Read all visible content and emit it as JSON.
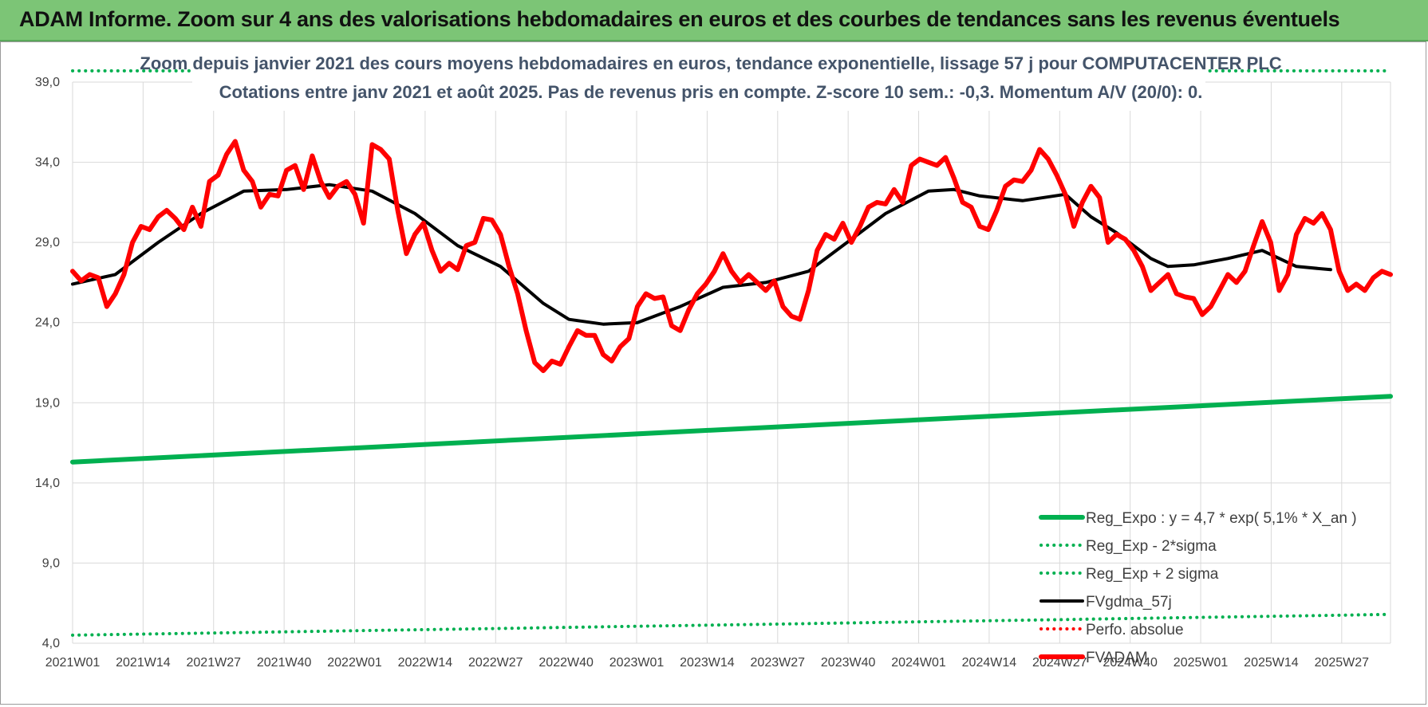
{
  "banner": {
    "title": "ADAM Informe. Zoom sur 4 ans des valorisations hebdomadaires en euros et des courbes de tendances sans les revenus éventuels"
  },
  "colors": {
    "banner_bg": "#7cc576",
    "subtitle": "#44546a",
    "reg_expo": "#00b050",
    "fvgdma": "#000000",
    "fvadam": "#ff0000",
    "perfo": "#ff0000"
  },
  "chart_data": {
    "type": "line",
    "title_line1": "Zoom depuis janvier 2021 des cours moyens hebdomadaires en euros, tendance exponentielle, lissage 57 j pour COMPUTACENTER PLC",
    "title_line2": "Cotations entre janv 2021 et août 2025.  Pas de revenus pris en compte. Z-score 10 sem.: -0,3. Momentum A/V (20/0): 0.",
    "ylim": [
      4,
      39
    ],
    "yticks": [
      "4,0",
      "9,0",
      "14,0",
      "19,0",
      "24,0",
      "29,0",
      "34,0",
      "39,0"
    ],
    "ytick_values": [
      4,
      9,
      14,
      19,
      24,
      29,
      34,
      39
    ],
    "x_count": 244,
    "xticks": [
      "2021W01",
      "2021W14",
      "2021W27",
      "2021W40",
      "2022W01",
      "2022W14",
      "2022W27",
      "2022W40",
      "2023W01",
      "2023W14",
      "2023W27",
      "2023W40",
      "2024W01",
      "2024W14",
      "2024W27",
      "2024W40",
      "2025W01",
      "2025W14",
      "2025W27"
    ],
    "xtick_index": [
      0,
      13,
      26,
      39,
      52,
      65,
      78,
      91,
      104,
      117,
      130,
      143,
      156,
      169,
      182,
      195,
      208,
      221,
      234
    ],
    "grid": true,
    "legend_position": "bottom-right",
    "series": [
      {
        "name": "Reg_Expo : y = 4,7 * exp( 5,1% *  X_an )",
        "style": "solid",
        "color": "#00b050",
        "anchors": [
          [
            0,
            15.3
          ],
          [
            243,
            19.4
          ]
        ]
      },
      {
        "name": "Reg_Exp - 2*sigma",
        "style": "dotted",
        "color": "#00b050",
        "anchors": [
          [
            0,
            4.5
          ],
          [
            243,
            5.8
          ]
        ]
      },
      {
        "name": "Reg_Exp + 2 sigma",
        "style": "dotted",
        "color": "#00b050",
        "anchors": [
          [
            0,
            39.7
          ],
          [
            243,
            39.7
          ]
        ]
      },
      {
        "name": "FVgdma_57j",
        "style": "solid",
        "color": "#000000",
        "anchors": [
          [
            0,
            26.4
          ],
          [
            10,
            27.0
          ],
          [
            20,
            29.0
          ],
          [
            30,
            30.8
          ],
          [
            40,
            32.2
          ],
          [
            50,
            32.3
          ],
          [
            60,
            32.6
          ],
          [
            70,
            32.2
          ],
          [
            80,
            30.8
          ],
          [
            90,
            28.8
          ],
          [
            100,
            27.5
          ],
          [
            110,
            25.2
          ],
          [
            116,
            24.2
          ],
          [
            124,
            23.9
          ],
          [
            132,
            24.0
          ],
          [
            142,
            25.0
          ],
          [
            152,
            26.2
          ],
          [
            162,
            26.5
          ],
          [
            172,
            27.2
          ],
          [
            182,
            29.2
          ],
          [
            190,
            30.8
          ],
          [
            200,
            32.2
          ],
          [
            206,
            32.3
          ],
          [
            212,
            31.9
          ],
          [
            222,
            31.6
          ],
          [
            232,
            32.0
          ],
          [
            238,
            30.6
          ],
          [
            244,
            29.6
          ],
          [
            252,
            28.0
          ],
          [
            256,
            27.5
          ],
          [
            262,
            27.6
          ],
          [
            270,
            28.0
          ],
          [
            278,
            28.5
          ],
          [
            286,
            27.5
          ],
          [
            294,
            27.3
          ]
        ]
      },
      {
        "name": "Perfo. absolue",
        "style": "dotted",
        "color": "#ff0000",
        "anchors": []
      },
      {
        "name": "FVADAM",
        "style": "solid",
        "color": "#ff0000",
        "anchors": [
          [
            0,
            27.2
          ],
          [
            2,
            26.6
          ],
          [
            4,
            27.0
          ],
          [
            6,
            26.8
          ],
          [
            8,
            25.0
          ],
          [
            10,
            25.8
          ],
          [
            12,
            27.0
          ],
          [
            14,
            29.0
          ],
          [
            16,
            30.0
          ],
          [
            18,
            29.8
          ],
          [
            20,
            30.6
          ],
          [
            22,
            31.0
          ],
          [
            24,
            30.5
          ],
          [
            26,
            29.8
          ],
          [
            28,
            31.2
          ],
          [
            30,
            30.0
          ],
          [
            32,
            32.8
          ],
          [
            34,
            33.2
          ],
          [
            36,
            34.5
          ],
          [
            38,
            35.3
          ],
          [
            40,
            33.5
          ],
          [
            42,
            32.8
          ],
          [
            44,
            31.2
          ],
          [
            46,
            32.0
          ],
          [
            48,
            31.9
          ],
          [
            50,
            33.5
          ],
          [
            52,
            33.8
          ],
          [
            54,
            32.3
          ],
          [
            56,
            34.4
          ],
          [
            58,
            32.8
          ],
          [
            60,
            31.8
          ],
          [
            62,
            32.5
          ],
          [
            64,
            32.8
          ],
          [
            66,
            32.0
          ],
          [
            68,
            30.2
          ],
          [
            70,
            35.1
          ],
          [
            72,
            34.8
          ],
          [
            74,
            34.2
          ],
          [
            76,
            31.0
          ],
          [
            78,
            28.3
          ],
          [
            80,
            29.5
          ],
          [
            82,
            30.2
          ],
          [
            84,
            28.5
          ],
          [
            86,
            27.2
          ],
          [
            88,
            27.7
          ],
          [
            90,
            27.3
          ],
          [
            92,
            28.8
          ],
          [
            94,
            29.0
          ],
          [
            96,
            30.5
          ],
          [
            98,
            30.4
          ],
          [
            100,
            29.5
          ],
          [
            102,
            27.5
          ],
          [
            104,
            25.8
          ],
          [
            106,
            23.5
          ],
          [
            108,
            21.5
          ],
          [
            110,
            21.0
          ],
          [
            112,
            21.6
          ],
          [
            114,
            21.4
          ],
          [
            116,
            22.5
          ],
          [
            118,
            23.5
          ],
          [
            120,
            23.2
          ],
          [
            122,
            23.2
          ],
          [
            124,
            22.0
          ],
          [
            126,
            21.6
          ],
          [
            128,
            22.5
          ],
          [
            130,
            23.0
          ],
          [
            132,
            25.0
          ],
          [
            134,
            25.8
          ],
          [
            136,
            25.5
          ],
          [
            138,
            25.6
          ],
          [
            140,
            23.8
          ],
          [
            142,
            23.5
          ],
          [
            144,
            24.8
          ],
          [
            146,
            25.8
          ],
          [
            148,
            26.4
          ],
          [
            150,
            27.2
          ],
          [
            152,
            28.3
          ],
          [
            154,
            27.2
          ],
          [
            156,
            26.5
          ],
          [
            158,
            27.0
          ],
          [
            160,
            26.5
          ],
          [
            162,
            26.0
          ],
          [
            164,
            26.6
          ],
          [
            166,
            25.0
          ],
          [
            168,
            24.4
          ],
          [
            170,
            24.2
          ],
          [
            172,
            26.0
          ],
          [
            174,
            28.5
          ],
          [
            176,
            29.5
          ],
          [
            178,
            29.2
          ],
          [
            180,
            30.2
          ],
          [
            182,
            29.0
          ],
          [
            184,
            30.0
          ],
          [
            186,
            31.2
          ],
          [
            188,
            31.5
          ],
          [
            190,
            31.4
          ],
          [
            192,
            32.3
          ],
          [
            194,
            31.5
          ],
          [
            196,
            33.8
          ],
          [
            198,
            34.2
          ],
          [
            200,
            34.0
          ],
          [
            202,
            33.8
          ],
          [
            204,
            34.3
          ],
          [
            206,
            33.0
          ],
          [
            208,
            31.5
          ],
          [
            210,
            31.2
          ],
          [
            212,
            30.0
          ],
          [
            214,
            29.8
          ],
          [
            216,
            31.0
          ],
          [
            218,
            32.5
          ],
          [
            220,
            32.9
          ],
          [
            222,
            32.8
          ],
          [
            224,
            33.5
          ],
          [
            226,
            34.8
          ],
          [
            228,
            34.2
          ],
          [
            230,
            33.2
          ],
          [
            232,
            32.0
          ],
          [
            234,
            30.0
          ],
          [
            236,
            31.5
          ],
          [
            238,
            32.5
          ],
          [
            240,
            31.8
          ],
          [
            242,
            29.0
          ],
          [
            244,
            29.5
          ],
          [
            246,
            29.2
          ],
          [
            248,
            28.5
          ],
          [
            250,
            27.5
          ],
          [
            252,
            26.0
          ],
          [
            254,
            26.5
          ],
          [
            256,
            27.0
          ],
          [
            258,
            25.8
          ],
          [
            260,
            25.6
          ],
          [
            262,
            25.5
          ],
          [
            264,
            24.5
          ],
          [
            266,
            25.0
          ],
          [
            268,
            26.0
          ],
          [
            270,
            27.0
          ],
          [
            272,
            26.5
          ],
          [
            274,
            27.2
          ],
          [
            276,
            28.8
          ],
          [
            278,
            30.3
          ],
          [
            280,
            29.0
          ],
          [
            282,
            26.0
          ],
          [
            284,
            27.0
          ],
          [
            286,
            29.5
          ],
          [
            288,
            30.5
          ],
          [
            290,
            30.2
          ],
          [
            292,
            30.8
          ],
          [
            294,
            29.8
          ],
          [
            296,
            27.2
          ],
          [
            298,
            26.0
          ],
          [
            300,
            26.4
          ],
          [
            302,
            26.0
          ],
          [
            304,
            26.8
          ],
          [
            306,
            27.2
          ],
          [
            308,
            27.0
          ]
        ]
      }
    ]
  }
}
